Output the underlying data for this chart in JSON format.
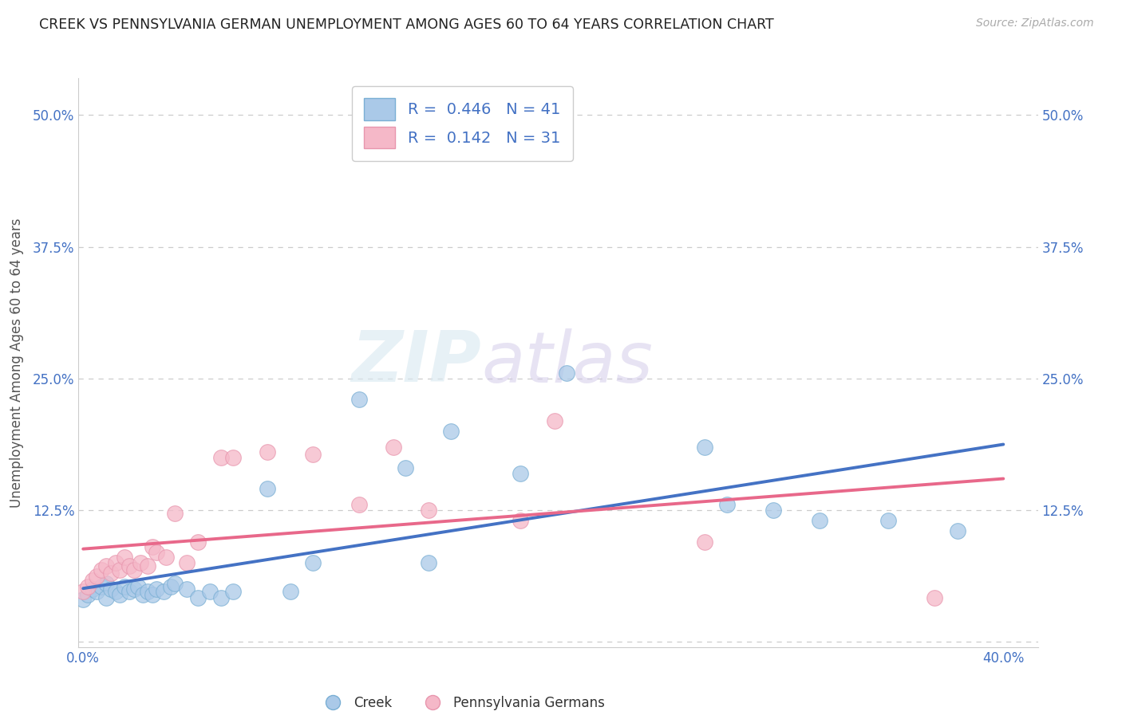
{
  "title": "CREEK VS PENNSYLVANIA GERMAN UNEMPLOYMENT AMONG AGES 60 TO 64 YEARS CORRELATION CHART",
  "source": "Source: ZipAtlas.com",
  "ylabel": "Unemployment Among Ages 60 to 64 years",
  "xlim": [
    -0.002,
    0.415
  ],
  "ylim": [
    -0.005,
    0.535
  ],
  "xticks": [
    0.0,
    0.1,
    0.2,
    0.3,
    0.4
  ],
  "xticklabels": [
    "0.0%",
    "",
    "",
    "",
    "40.0%"
  ],
  "yticks": [
    0.0,
    0.125,
    0.25,
    0.375,
    0.5
  ],
  "yticklabels": [
    "",
    "12.5%",
    "25.0%",
    "37.5%",
    "50.0%"
  ],
  "creek_color": "#aac9e8",
  "creek_edge": "#7aafd4",
  "creek_line": "#4472c4",
  "pg_color": "#f5b8c8",
  "pg_edge": "#e896ae",
  "pg_line": "#e8688a",
  "creek_R": "0.446",
  "creek_N": "41",
  "pg_R": "0.142",
  "pg_N": "31",
  "legend_label_creek": "Creek",
  "legend_label_pg": "Pennsylvania Germans",
  "title_color": "#222222",
  "axis_label_color": "#555555",
  "tick_color": "#4472c4",
  "legend_value_color": "#4472c4",
  "grid_color": "#cccccc",
  "background_color": "#ffffff",
  "creek_x": [
    0.0,
    0.002,
    0.004,
    0.006,
    0.008,
    0.01,
    0.01,
    0.012,
    0.014,
    0.016,
    0.018,
    0.02,
    0.022,
    0.024,
    0.026,
    0.028,
    0.03,
    0.032,
    0.035,
    0.038,
    0.04,
    0.045,
    0.05,
    0.055,
    0.06,
    0.065,
    0.08,
    0.09,
    0.1,
    0.12,
    0.14,
    0.15,
    0.16,
    0.19,
    0.21,
    0.27,
    0.28,
    0.3,
    0.32,
    0.35,
    0.38
  ],
  "creek_y": [
    0.04,
    0.045,
    0.05,
    0.048,
    0.052,
    0.055,
    0.042,
    0.05,
    0.048,
    0.045,
    0.052,
    0.048,
    0.05,
    0.052,
    0.045,
    0.048,
    0.045,
    0.05,
    0.048,
    0.052,
    0.055,
    0.05,
    0.042,
    0.048,
    0.042,
    0.048,
    0.145,
    0.048,
    0.075,
    0.23,
    0.165,
    0.075,
    0.2,
    0.16,
    0.255,
    0.185,
    0.13,
    0.125,
    0.115,
    0.115,
    0.105
  ],
  "pg_x": [
    0.0,
    0.002,
    0.004,
    0.006,
    0.008,
    0.01,
    0.012,
    0.014,
    0.016,
    0.018,
    0.02,
    0.022,
    0.025,
    0.028,
    0.03,
    0.032,
    0.036,
    0.04,
    0.045,
    0.05,
    0.06,
    0.065,
    0.08,
    0.1,
    0.12,
    0.135,
    0.15,
    0.19,
    0.205,
    0.27,
    0.37
  ],
  "pg_y": [
    0.048,
    0.052,
    0.058,
    0.062,
    0.068,
    0.072,
    0.065,
    0.075,
    0.068,
    0.08,
    0.072,
    0.068,
    0.075,
    0.072,
    0.09,
    0.085,
    0.08,
    0.122,
    0.075,
    0.095,
    0.175,
    0.175,
    0.18,
    0.178,
    0.13,
    0.185,
    0.125,
    0.115,
    0.21,
    0.095,
    0.042
  ]
}
